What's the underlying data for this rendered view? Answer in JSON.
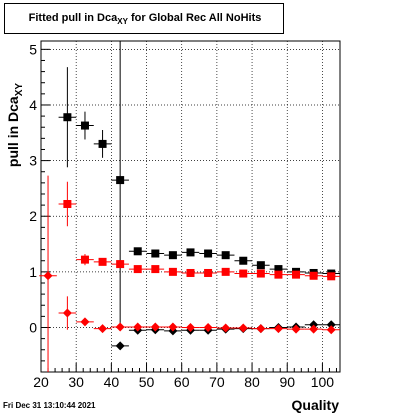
{
  "title": {
    "main": "Fitted pull in Dca",
    "sub": "XY",
    "rest": " for Global Rec All NoHits"
  },
  "datestamp": "Fri Dec 31 13:10:44 2021",
  "chart_data": {
    "type": "scatter",
    "title": "Fitted pull in Dca_XY for Global Rec All NoHits",
    "xlabel": "Quality",
    "ylabel_main": "pull in Dca",
    "ylabel_sub": "XY",
    "xlim": [
      20,
      105
    ],
    "ylim": [
      -0.8,
      5.15
    ],
    "xticks": [
      20,
      30,
      40,
      50,
      60,
      70,
      80,
      90,
      100
    ],
    "yticks": [
      0,
      1,
      2,
      3,
      4,
      5
    ],
    "grid": true,
    "series": [
      {
        "color": "#000000",
        "marker": "square",
        "points": [
          {
            "x": 27.5,
            "y": 3.78,
            "err": 0.9
          },
          {
            "x": 32.5,
            "y": 3.63,
            "err": 0.25
          },
          {
            "x": 37.5,
            "y": 3.3,
            "err": 0.25
          },
          {
            "x": 42.5,
            "y": 2.65,
            "err": 2.6
          },
          {
            "x": 47.5,
            "y": 1.37,
            "err": 0.05
          },
          {
            "x": 52.5,
            "y": 1.33,
            "err": 0.04
          },
          {
            "x": 57.5,
            "y": 1.3,
            "err": 0.03
          },
          {
            "x": 62.5,
            "y": 1.35,
            "err": 0.03
          },
          {
            "x": 67.5,
            "y": 1.33,
            "err": 0.03
          },
          {
            "x": 72.5,
            "y": 1.3,
            "err": 0.03
          },
          {
            "x": 77.5,
            "y": 1.2,
            "err": 0.03
          },
          {
            "x": 82.5,
            "y": 1.12,
            "err": 0.03
          },
          {
            "x": 87.5,
            "y": 1.05,
            "err": 0.03
          },
          {
            "x": 92.5,
            "y": 1.0,
            "err": 0.03
          },
          {
            "x": 97.5,
            "y": 0.98,
            "err": 0.03
          },
          {
            "x": 102.5,
            "y": 0.97,
            "err": 0.03
          }
        ]
      },
      {
        "color": "#ff0000",
        "marker": "square",
        "points": [
          {
            "x": 27.5,
            "y": 2.22,
            "err": 0.4
          },
          {
            "x": 32.5,
            "y": 1.22,
            "err": 0.1
          },
          {
            "x": 37.5,
            "y": 1.18,
            "err": 0.04
          },
          {
            "x": 42.5,
            "y": 1.14,
            "err": 0.04
          },
          {
            "x": 47.5,
            "y": 1.05,
            "err": 0.03
          },
          {
            "x": 52.5,
            "y": 1.05,
            "err": 0.03
          },
          {
            "x": 57.5,
            "y": 1.0,
            "err": 0.03
          },
          {
            "x": 62.5,
            "y": 0.98,
            "err": 0.03
          },
          {
            "x": 67.5,
            "y": 0.98,
            "err": 0.03
          },
          {
            "x": 72.5,
            "y": 1.0,
            "err": 0.03
          },
          {
            "x": 77.5,
            "y": 0.97,
            "err": 0.03
          },
          {
            "x": 82.5,
            "y": 0.97,
            "err": 0.03
          },
          {
            "x": 87.5,
            "y": 0.95,
            "err": 0.03
          },
          {
            "x": 92.5,
            "y": 0.95,
            "err": 0.03
          },
          {
            "x": 97.5,
            "y": 0.93,
            "err": 0.03
          },
          {
            "x": 102.5,
            "y": 0.92,
            "err": 0.03
          }
        ]
      },
      {
        "color": "#000000",
        "marker": "diamond",
        "points": [
          {
            "x": 42.5,
            "y": -0.33,
            "err": 0.05
          },
          {
            "x": 47.5,
            "y": -0.05,
            "err": 0.02
          },
          {
            "x": 52.5,
            "y": -0.04,
            "err": 0.02
          },
          {
            "x": 57.5,
            "y": -0.06,
            "err": 0.02
          },
          {
            "x": 62.5,
            "y": -0.05,
            "err": 0.02
          },
          {
            "x": 67.5,
            "y": -0.05,
            "err": 0.02
          },
          {
            "x": 72.5,
            "y": -0.03,
            "err": 0.02
          },
          {
            "x": 77.5,
            "y": -0.02,
            "err": 0.02
          },
          {
            "x": 82.5,
            "y": -0.02,
            "err": 0.02
          },
          {
            "x": 87.5,
            "y": 0.0,
            "err": 0.02
          },
          {
            "x": 92.5,
            "y": 0.01,
            "err": 0.02
          },
          {
            "x": 97.5,
            "y": 0.05,
            "err": 0.02
          },
          {
            "x": 102.5,
            "y": 0.05,
            "err": 0.02
          }
        ]
      },
      {
        "color": "#ff0000",
        "marker": "diamond",
        "points": [
          {
            "x": 22.0,
            "y": 0.93,
            "err": 1.8
          },
          {
            "x": 27.5,
            "y": 0.26,
            "err": 0.3
          },
          {
            "x": 32.5,
            "y": 0.1,
            "err": 0.05
          },
          {
            "x": 37.5,
            "y": -0.02,
            "err": 0.03
          },
          {
            "x": 42.5,
            "y": 0.01,
            "err": 0.03
          },
          {
            "x": 47.5,
            "y": 0.01,
            "err": 0.02
          },
          {
            "x": 52.5,
            "y": 0.01,
            "err": 0.02
          },
          {
            "x": 57.5,
            "y": 0.01,
            "err": 0.02
          },
          {
            "x": 62.5,
            "y": 0.0,
            "err": 0.02
          },
          {
            "x": 67.5,
            "y": 0.0,
            "err": 0.02
          },
          {
            "x": 72.5,
            "y": -0.01,
            "err": 0.02
          },
          {
            "x": 77.5,
            "y": -0.01,
            "err": 0.02
          },
          {
            "x": 82.5,
            "y": -0.02,
            "err": 0.02
          },
          {
            "x": 87.5,
            "y": -0.02,
            "err": 0.02
          },
          {
            "x": 92.5,
            "y": -0.03,
            "err": 0.02
          },
          {
            "x": 97.5,
            "y": -0.03,
            "err": 0.02
          },
          {
            "x": 102.5,
            "y": -0.04,
            "err": 0.02
          }
        ]
      }
    ]
  }
}
